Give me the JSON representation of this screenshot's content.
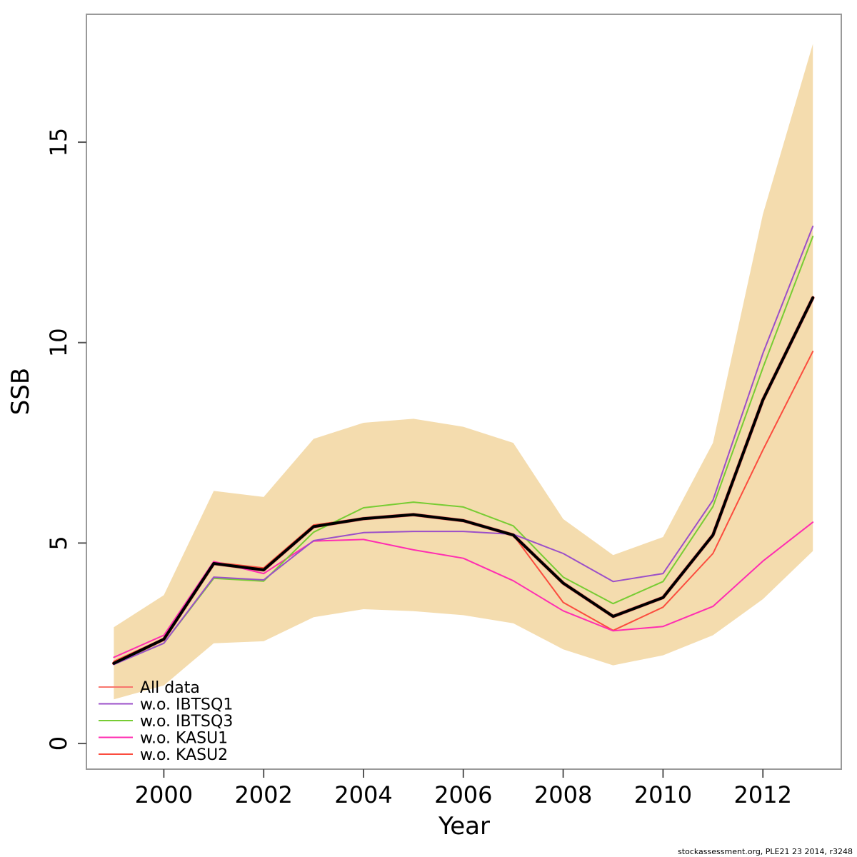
{
  "page": {
    "background": "#FFFFFF"
  },
  "footer": {
    "text": "stockassessment.org, PLE21 23 2014, r3248"
  },
  "chart_data": {
    "type": "line",
    "title": "",
    "xlabel": "Year",
    "ylabel": "SSB",
    "x_ticks": [
      2000,
      2002,
      2004,
      2006,
      2008,
      2010,
      2012
    ],
    "y_ticks": [
      0,
      5,
      10,
      15
    ],
    "xlim": [
      1998.45,
      2013.57
    ],
    "ylim": [
      -0.64,
      18.19
    ],
    "grid": "off",
    "legend_position": "bottom-left",
    "x": [
      1999,
      2000,
      2001,
      2002,
      2003,
      2004,
      2005,
      2006,
      2007,
      2008,
      2009,
      2010,
      2011,
      2012,
      2013
    ],
    "band": {
      "name": "All data confidence interval",
      "color": "#F4DCAE",
      "lower": [
        1.1,
        1.45,
        2.5,
        2.55,
        3.15,
        3.35,
        3.3,
        3.2,
        3.0,
        2.35,
        1.95,
        2.2,
        2.7,
        3.6,
        4.8
      ],
      "upper": [
        2.9,
        3.7,
        6.3,
        6.15,
        7.6,
        8.0,
        8.1,
        7.9,
        7.5,
        5.6,
        4.7,
        5.15,
        7.5,
        13.2,
        17.45
      ]
    },
    "series": [
      {
        "name": "All data",
        "color": "#F8766D",
        "width": 5,
        "emphasis": false,
        "in_legend": true,
        "values": [
          2.0,
          2.6,
          4.49,
          4.33,
          5.41,
          5.61,
          5.71,
          5.56,
          5.2,
          4.0,
          3.17,
          3.64,
          5.2,
          8.57,
          11.12
        ]
      },
      {
        "name": "w.o. KASU2",
        "color": "#FB4C3E",
        "width": 2,
        "emphasis": false,
        "in_legend": true,
        "values": [
          2.05,
          2.62,
          4.52,
          4.38,
          5.45,
          5.62,
          5.72,
          5.57,
          5.2,
          3.52,
          2.82,
          3.4,
          4.74,
          7.32,
          9.78
        ]
      },
      {
        "name": "w.o. KASU1",
        "color": "#FF2DB1",
        "width": 2,
        "emphasis": false,
        "in_legend": true,
        "values": [
          2.15,
          2.7,
          4.54,
          4.24,
          5.05,
          5.09,
          4.83,
          4.62,
          4.06,
          3.31,
          2.81,
          2.92,
          3.42,
          4.55,
          5.52
        ]
      },
      {
        "name": "w.o. IBTSQ3",
        "color": "#77CC33",
        "width": 2,
        "emphasis": false,
        "in_legend": true,
        "values": [
          1.98,
          2.5,
          4.12,
          4.05,
          5.27,
          5.88,
          6.02,
          5.9,
          5.43,
          4.15,
          3.49,
          4.04,
          5.91,
          9.37,
          12.65
        ]
      },
      {
        "name": "w.o. IBTSQ1",
        "color": "#9B4FC9",
        "width": 2,
        "emphasis": false,
        "in_legend": true,
        "values": [
          1.97,
          2.5,
          4.15,
          4.08,
          5.06,
          5.26,
          5.29,
          5.29,
          5.22,
          4.74,
          4.04,
          4.24,
          6.07,
          9.73,
          12.9
        ]
      },
      {
        "name": "All data central estimate",
        "color": "#000000",
        "width": 4,
        "emphasis": true,
        "in_legend": false,
        "values": [
          2.0,
          2.6,
          4.49,
          4.33,
          5.41,
          5.61,
          5.71,
          5.56,
          5.2,
          4.0,
          3.17,
          3.64,
          5.2,
          8.57,
          11.12
        ]
      }
    ],
    "legend_entries": [
      {
        "label": "All data",
        "color": "#F8766D"
      },
      {
        "label": "w.o. IBTSQ1",
        "color": "#9B4FC9"
      },
      {
        "label": "w.o. IBTSQ3",
        "color": "#77CC33"
      },
      {
        "label": "w.o. KASU1",
        "color": "#FF2DB1"
      },
      {
        "label": "w.o. KASU2",
        "color": "#FB4C3E"
      }
    ]
  }
}
